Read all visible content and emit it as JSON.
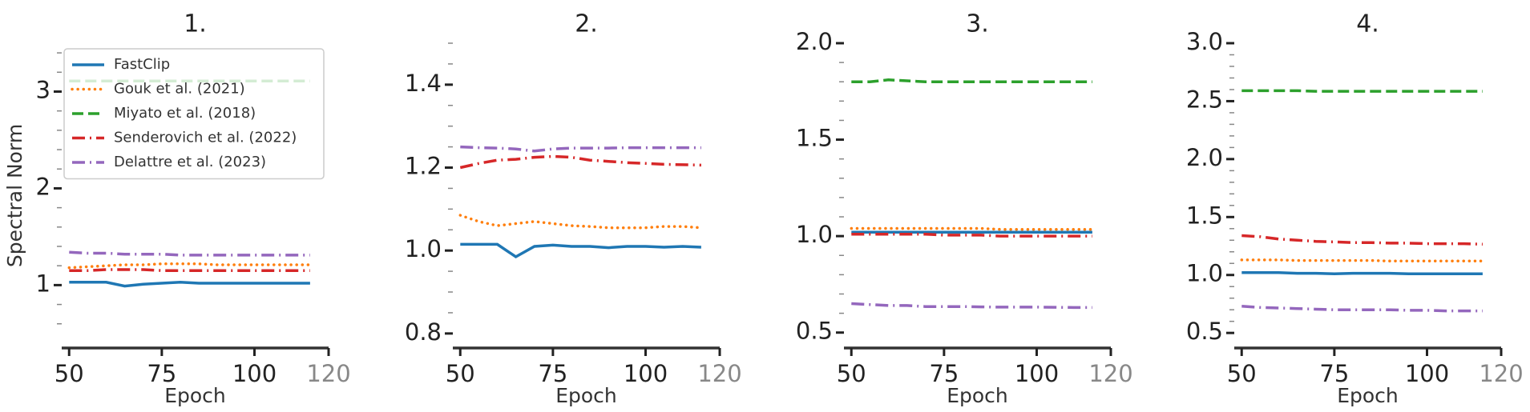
{
  "chart_data": [
    {
      "type": "line",
      "title": "1.",
      "xlabel": "Epoch",
      "ylabel": "Spectral Norm",
      "x": [
        50,
        55,
        60,
        65,
        70,
        75,
        80,
        85,
        90,
        95,
        100,
        105,
        110,
        115
      ],
      "xlim": [
        48,
        120
      ],
      "xticks": [
        50,
        75,
        100,
        120
      ],
      "ylim": [
        0.35,
        3.5
      ],
      "yticks": [
        1,
        2,
        3
      ],
      "yminor": [
        0.6,
        0.8,
        1.2,
        1.4,
        1.6,
        1.8,
        2.2,
        2.4,
        2.6,
        2.8,
        3.2,
        3.4
      ],
      "legend": "upper left",
      "series": [
        {
          "name": "FastClip",
          "color": "#1f77b4",
          "dash": "solid",
          "values": [
            1.03,
            1.03,
            1.03,
            0.99,
            1.01,
            1.02,
            1.03,
            1.02,
            1.02,
            1.02,
            1.02,
            1.02,
            1.02,
            1.02
          ]
        },
        {
          "name": "Gouk et al. (2021)",
          "color": "#ff7f0e",
          "dash": "dotted",
          "values": [
            1.18,
            1.19,
            1.2,
            1.21,
            1.21,
            1.22,
            1.22,
            1.22,
            1.21,
            1.21,
            1.21,
            1.21,
            1.21,
            1.21
          ]
        },
        {
          "name": "Miyato et al. (2018)",
          "color": "#2ca02c",
          "dash": "dashed",
          "values": [
            3.11,
            3.11,
            3.11,
            3.11,
            3.11,
            3.11,
            3.11,
            3.11,
            3.11,
            3.11,
            3.11,
            3.11,
            3.11,
            3.11
          ]
        },
        {
          "name": "Senderovich et al. (2022)",
          "color": "#d62728",
          "dash": "dashdot",
          "values": [
            1.15,
            1.15,
            1.16,
            1.16,
            1.16,
            1.15,
            1.15,
            1.15,
            1.15,
            1.15,
            1.15,
            1.15,
            1.15,
            1.15
          ]
        },
        {
          "name": "Delattre et al. (2023)",
          "color": "#9467bd",
          "dash": "dashdot",
          "values": [
            1.34,
            1.33,
            1.33,
            1.32,
            1.32,
            1.32,
            1.31,
            1.31,
            1.31,
            1.31,
            1.31,
            1.31,
            1.31,
            1.31
          ]
        }
      ]
    },
    {
      "type": "line",
      "title": "2.",
      "xlabel": "Epoch",
      "x": [
        50,
        55,
        60,
        65,
        70,
        75,
        80,
        85,
        90,
        95,
        100,
        105,
        110,
        115
      ],
      "xlim": [
        48,
        120
      ],
      "xticks": [
        50,
        75,
        100,
        120
      ],
      "ylim": [
        0.765,
        1.5
      ],
      "yticks": [
        0.8,
        {
          "value": 1,
          "label": "1.0"
        },
        1.2,
        1.4
      ],
      "yminor": [
        0.85,
        0.9,
        0.95,
        1.05,
        1.1,
        1.15,
        1.25,
        1.3,
        1.35,
        1.45,
        1.5
      ],
      "series": [
        {
          "name": "FastClip",
          "color": "#1f77b4",
          "dash": "solid",
          "values": [
            1.015,
            1.015,
            1.015,
            0.985,
            1.01,
            1.013,
            1.01,
            1.01,
            1.007,
            1.01,
            1.01,
            1.008,
            1.01,
            1.008
          ]
        },
        {
          "name": "Gouk et al. (2021)",
          "color": "#ff7f0e",
          "dash": "dotted",
          "values": [
            1.085,
            1.07,
            1.06,
            1.065,
            1.07,
            1.065,
            1.06,
            1.058,
            1.055,
            1.055,
            1.055,
            1.058,
            1.058,
            1.055
          ]
        },
        {
          "name": "Senderovich et al. (2022)",
          "color": "#d62728",
          "dash": "dashdot",
          "values": [
            1.2,
            1.21,
            1.218,
            1.22,
            1.225,
            1.227,
            1.225,
            1.218,
            1.215,
            1.212,
            1.21,
            1.208,
            1.207,
            1.206
          ]
        },
        {
          "name": "Delattre et al. (2023)",
          "color": "#9467bd",
          "dash": "dashdot",
          "values": [
            1.25,
            1.248,
            1.247,
            1.245,
            1.24,
            1.245,
            1.247,
            1.247,
            1.247,
            1.248,
            1.248,
            1.248,
            1.248,
            1.248
          ]
        }
      ]
    },
    {
      "type": "line",
      "title": "3.",
      "xlabel": "Epoch",
      "x": [
        50,
        55,
        60,
        65,
        70,
        75,
        80,
        85,
        90,
        95,
        100,
        105,
        110,
        115
      ],
      "xlim": [
        48,
        120
      ],
      "xticks": [
        50,
        75,
        100,
        120
      ],
      "ylim": [
        0.42,
        2.0
      ],
      "yticks": [
        0.5,
        {
          "value": 1,
          "label": "1.0"
        },
        1.5,
        {
          "value": 2,
          "label": "2.0"
        }
      ],
      "yminor": [
        0.6,
        0.7,
        0.8,
        0.9,
        1.1,
        1.2,
        1.3,
        1.4,
        1.6,
        1.7,
        1.8,
        1.9
      ],
      "series": [
        {
          "name": "FastClip",
          "color": "#1f77b4",
          "dash": "solid",
          "values": [
            1.02,
            1.02,
            1.02,
            1.02,
            1.02,
            1.02,
            1.02,
            1.02,
            1.02,
            1.02,
            1.02,
            1.02,
            1.02,
            1.02
          ]
        },
        {
          "name": "Gouk et al. (2021)",
          "color": "#ff7f0e",
          "dash": "dotted",
          "values": [
            1.04,
            1.04,
            1.04,
            1.04,
            1.04,
            1.04,
            1.04,
            1.04,
            1.035,
            1.035,
            1.035,
            1.035,
            1.035,
            1.035
          ]
        },
        {
          "name": "Miyato et al. (2018)",
          "color": "#2ca02c",
          "dash": "dashed",
          "values": [
            1.8,
            1.8,
            1.81,
            1.805,
            1.8,
            1.8,
            1.8,
            1.8,
            1.8,
            1.8,
            1.8,
            1.8,
            1.8,
            1.8
          ]
        },
        {
          "name": "Senderovich et al. (2022)",
          "color": "#d62728",
          "dash": "dashdot",
          "values": [
            1.01,
            1.01,
            1.01,
            1.01,
            1.01,
            1.005,
            1.005,
            1.005,
            1.0,
            1.0,
            1.0,
            1.0,
            1.0,
            1.0
          ]
        },
        {
          "name": "Delattre et al. (2023)",
          "color": "#9467bd",
          "dash": "dashdot",
          "values": [
            0.65,
            0.645,
            0.64,
            0.64,
            0.635,
            0.635,
            0.635,
            0.633,
            0.632,
            0.632,
            0.632,
            0.631,
            0.63,
            0.63
          ]
        }
      ]
    },
    {
      "type": "line",
      "title": "4.",
      "xlabel": "Epoch",
      "x": [
        50,
        55,
        60,
        65,
        70,
        75,
        80,
        85,
        90,
        95,
        100,
        105,
        110,
        115
      ],
      "xlim": [
        48,
        120
      ],
      "xticks": [
        50,
        75,
        100,
        120
      ],
      "ylim": [
        0.37,
        3.0
      ],
      "yticks": [
        0.5,
        {
          "value": 1,
          "label": "1.0"
        },
        1.5,
        {
          "value": 2,
          "label": "2.0"
        },
        2.5,
        {
          "value": 3,
          "label": "3.0"
        }
      ],
      "yminor": [
        0.6,
        0.7,
        0.8,
        0.9,
        1.1,
        1.2,
        1.3,
        1.4,
        1.6,
        1.7,
        1.8,
        1.9,
        2.1,
        2.2,
        2.3,
        2.4,
        2.6,
        2.7,
        2.8,
        2.9
      ],
      "series": [
        {
          "name": "FastClip",
          "color": "#1f77b4",
          "dash": "solid",
          "values": [
            1.02,
            1.02,
            1.02,
            1.015,
            1.015,
            1.01,
            1.015,
            1.015,
            1.015,
            1.01,
            1.01,
            1.01,
            1.01,
            1.01
          ]
        },
        {
          "name": "Gouk et al. (2021)",
          "color": "#ff7f0e",
          "dash": "dotted",
          "values": [
            1.13,
            1.13,
            1.13,
            1.125,
            1.125,
            1.125,
            1.125,
            1.125,
            1.12,
            1.12,
            1.12,
            1.12,
            1.12,
            1.12
          ]
        },
        {
          "name": "Miyato et al. (2018)",
          "color": "#2ca02c",
          "dash": "dashed",
          "values": [
            2.59,
            2.59,
            2.59,
            2.59,
            2.585,
            2.585,
            2.585,
            2.585,
            2.585,
            2.585,
            2.585,
            2.585,
            2.585,
            2.585
          ]
        },
        {
          "name": "Senderovich et al. (2022)",
          "color": "#d62728",
          "dash": "dashdot",
          "values": [
            1.34,
            1.33,
            1.31,
            1.3,
            1.29,
            1.285,
            1.28,
            1.28,
            1.275,
            1.275,
            1.27,
            1.27,
            1.27,
            1.265
          ]
        },
        {
          "name": "Delattre et al. (2023)",
          "color": "#9467bd",
          "dash": "dashdot",
          "values": [
            0.73,
            0.72,
            0.715,
            0.71,
            0.705,
            0.7,
            0.7,
            0.7,
            0.7,
            0.695,
            0.695,
            0.69,
            0.69,
            0.69
          ]
        }
      ]
    }
  ]
}
